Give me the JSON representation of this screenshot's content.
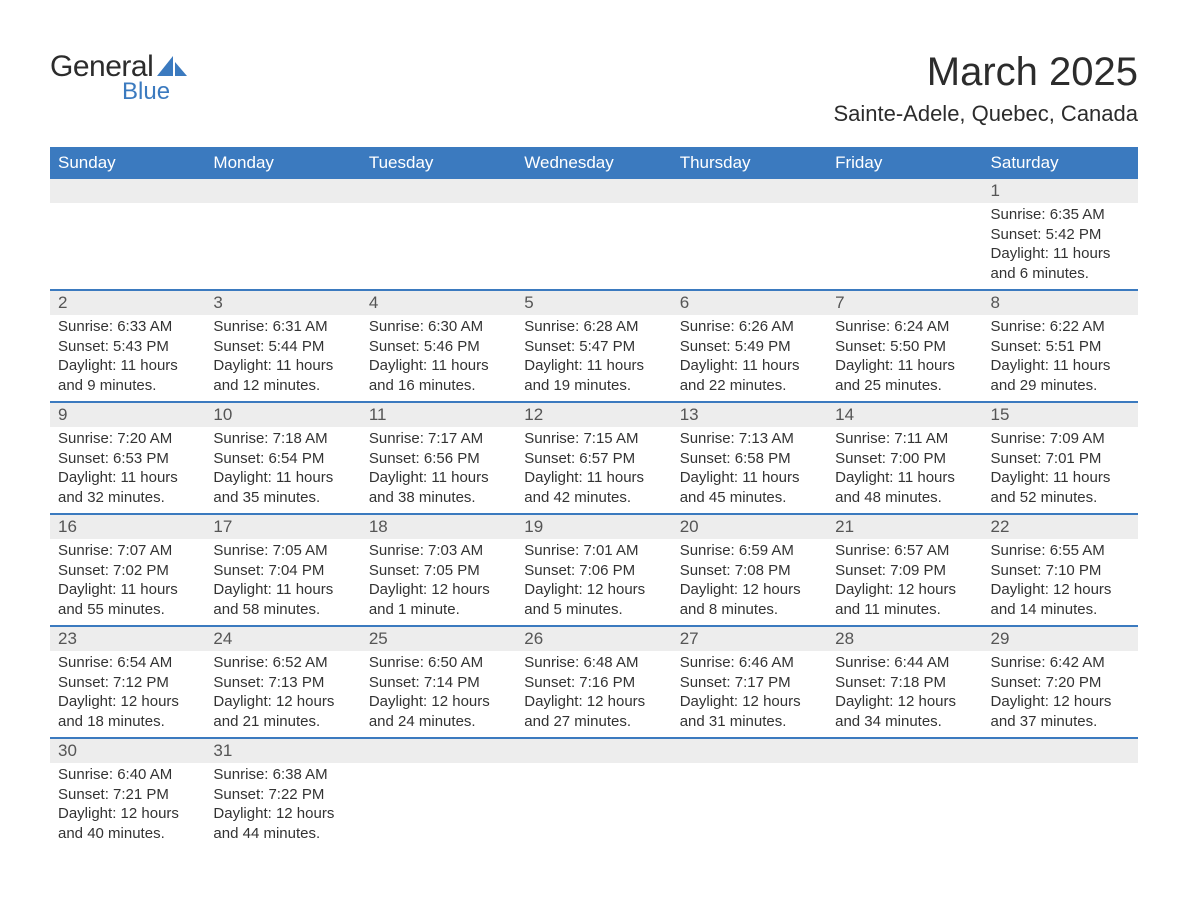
{
  "logo": {
    "text_general": "General",
    "text_blue": "Blue",
    "shape_color": "#3b7abf",
    "text_main_color": "#2c2c2c"
  },
  "header": {
    "month_title": "March 2025",
    "location": "Sainte-Adele, Quebec, Canada"
  },
  "colors": {
    "header_bg": "#3b7abf",
    "header_text": "#ffffff",
    "daynum_bg": "#ededed",
    "daynum_text": "#555555",
    "body_text": "#333333",
    "week_border": "#3b7abf",
    "page_bg": "#ffffff"
  },
  "typography": {
    "month_title_size": 40,
    "location_size": 22,
    "dow_header_size": 17,
    "daynum_size": 17,
    "detail_size": 15
  },
  "days_of_week": [
    "Sunday",
    "Monday",
    "Tuesday",
    "Wednesday",
    "Thursday",
    "Friday",
    "Saturday"
  ],
  "weeks": [
    [
      {
        "day": "",
        "sunrise": "",
        "sunset": "",
        "daylight": ""
      },
      {
        "day": "",
        "sunrise": "",
        "sunset": "",
        "daylight": ""
      },
      {
        "day": "",
        "sunrise": "",
        "sunset": "",
        "daylight": ""
      },
      {
        "day": "",
        "sunrise": "",
        "sunset": "",
        "daylight": ""
      },
      {
        "day": "",
        "sunrise": "",
        "sunset": "",
        "daylight": ""
      },
      {
        "day": "",
        "sunrise": "",
        "sunset": "",
        "daylight": ""
      },
      {
        "day": "1",
        "sunrise": "Sunrise: 6:35 AM",
        "sunset": "Sunset: 5:42 PM",
        "daylight": "Daylight: 11 hours and 6 minutes."
      }
    ],
    [
      {
        "day": "2",
        "sunrise": "Sunrise: 6:33 AM",
        "sunset": "Sunset: 5:43 PM",
        "daylight": "Daylight: 11 hours and 9 minutes."
      },
      {
        "day": "3",
        "sunrise": "Sunrise: 6:31 AM",
        "sunset": "Sunset: 5:44 PM",
        "daylight": "Daylight: 11 hours and 12 minutes."
      },
      {
        "day": "4",
        "sunrise": "Sunrise: 6:30 AM",
        "sunset": "Sunset: 5:46 PM",
        "daylight": "Daylight: 11 hours and 16 minutes."
      },
      {
        "day": "5",
        "sunrise": "Sunrise: 6:28 AM",
        "sunset": "Sunset: 5:47 PM",
        "daylight": "Daylight: 11 hours and 19 minutes."
      },
      {
        "day": "6",
        "sunrise": "Sunrise: 6:26 AM",
        "sunset": "Sunset: 5:49 PM",
        "daylight": "Daylight: 11 hours and 22 minutes."
      },
      {
        "day": "7",
        "sunrise": "Sunrise: 6:24 AM",
        "sunset": "Sunset: 5:50 PM",
        "daylight": "Daylight: 11 hours and 25 minutes."
      },
      {
        "day": "8",
        "sunrise": "Sunrise: 6:22 AM",
        "sunset": "Sunset: 5:51 PM",
        "daylight": "Daylight: 11 hours and 29 minutes."
      }
    ],
    [
      {
        "day": "9",
        "sunrise": "Sunrise: 7:20 AM",
        "sunset": "Sunset: 6:53 PM",
        "daylight": "Daylight: 11 hours and 32 minutes."
      },
      {
        "day": "10",
        "sunrise": "Sunrise: 7:18 AM",
        "sunset": "Sunset: 6:54 PM",
        "daylight": "Daylight: 11 hours and 35 minutes."
      },
      {
        "day": "11",
        "sunrise": "Sunrise: 7:17 AM",
        "sunset": "Sunset: 6:56 PM",
        "daylight": "Daylight: 11 hours and 38 minutes."
      },
      {
        "day": "12",
        "sunrise": "Sunrise: 7:15 AM",
        "sunset": "Sunset: 6:57 PM",
        "daylight": "Daylight: 11 hours and 42 minutes."
      },
      {
        "day": "13",
        "sunrise": "Sunrise: 7:13 AM",
        "sunset": "Sunset: 6:58 PM",
        "daylight": "Daylight: 11 hours and 45 minutes."
      },
      {
        "day": "14",
        "sunrise": "Sunrise: 7:11 AM",
        "sunset": "Sunset: 7:00 PM",
        "daylight": "Daylight: 11 hours and 48 minutes."
      },
      {
        "day": "15",
        "sunrise": "Sunrise: 7:09 AM",
        "sunset": "Sunset: 7:01 PM",
        "daylight": "Daylight: 11 hours and 52 minutes."
      }
    ],
    [
      {
        "day": "16",
        "sunrise": "Sunrise: 7:07 AM",
        "sunset": "Sunset: 7:02 PM",
        "daylight": "Daylight: 11 hours and 55 minutes."
      },
      {
        "day": "17",
        "sunrise": "Sunrise: 7:05 AM",
        "sunset": "Sunset: 7:04 PM",
        "daylight": "Daylight: 11 hours and 58 minutes."
      },
      {
        "day": "18",
        "sunrise": "Sunrise: 7:03 AM",
        "sunset": "Sunset: 7:05 PM",
        "daylight": "Daylight: 12 hours and 1 minute."
      },
      {
        "day": "19",
        "sunrise": "Sunrise: 7:01 AM",
        "sunset": "Sunset: 7:06 PM",
        "daylight": "Daylight: 12 hours and 5 minutes."
      },
      {
        "day": "20",
        "sunrise": "Sunrise: 6:59 AM",
        "sunset": "Sunset: 7:08 PM",
        "daylight": "Daylight: 12 hours and 8 minutes."
      },
      {
        "day": "21",
        "sunrise": "Sunrise: 6:57 AM",
        "sunset": "Sunset: 7:09 PM",
        "daylight": "Daylight: 12 hours and 11 minutes."
      },
      {
        "day": "22",
        "sunrise": "Sunrise: 6:55 AM",
        "sunset": "Sunset: 7:10 PM",
        "daylight": "Daylight: 12 hours and 14 minutes."
      }
    ],
    [
      {
        "day": "23",
        "sunrise": "Sunrise: 6:54 AM",
        "sunset": "Sunset: 7:12 PM",
        "daylight": "Daylight: 12 hours and 18 minutes."
      },
      {
        "day": "24",
        "sunrise": "Sunrise: 6:52 AM",
        "sunset": "Sunset: 7:13 PM",
        "daylight": "Daylight: 12 hours and 21 minutes."
      },
      {
        "day": "25",
        "sunrise": "Sunrise: 6:50 AM",
        "sunset": "Sunset: 7:14 PM",
        "daylight": "Daylight: 12 hours and 24 minutes."
      },
      {
        "day": "26",
        "sunrise": "Sunrise: 6:48 AM",
        "sunset": "Sunset: 7:16 PM",
        "daylight": "Daylight: 12 hours and 27 minutes."
      },
      {
        "day": "27",
        "sunrise": "Sunrise: 6:46 AM",
        "sunset": "Sunset: 7:17 PM",
        "daylight": "Daylight: 12 hours and 31 minutes."
      },
      {
        "day": "28",
        "sunrise": "Sunrise: 6:44 AM",
        "sunset": "Sunset: 7:18 PM",
        "daylight": "Daylight: 12 hours and 34 minutes."
      },
      {
        "day": "29",
        "sunrise": "Sunrise: 6:42 AM",
        "sunset": "Sunset: 7:20 PM",
        "daylight": "Daylight: 12 hours and 37 minutes."
      }
    ],
    [
      {
        "day": "30",
        "sunrise": "Sunrise: 6:40 AM",
        "sunset": "Sunset: 7:21 PM",
        "daylight": "Daylight: 12 hours and 40 minutes."
      },
      {
        "day": "31",
        "sunrise": "Sunrise: 6:38 AM",
        "sunset": "Sunset: 7:22 PM",
        "daylight": "Daylight: 12 hours and 44 minutes."
      },
      {
        "day": "",
        "sunrise": "",
        "sunset": "",
        "daylight": ""
      },
      {
        "day": "",
        "sunrise": "",
        "sunset": "",
        "daylight": ""
      },
      {
        "day": "",
        "sunrise": "",
        "sunset": "",
        "daylight": ""
      },
      {
        "day": "",
        "sunrise": "",
        "sunset": "",
        "daylight": ""
      },
      {
        "day": "",
        "sunrise": "",
        "sunset": "",
        "daylight": ""
      }
    ]
  ]
}
